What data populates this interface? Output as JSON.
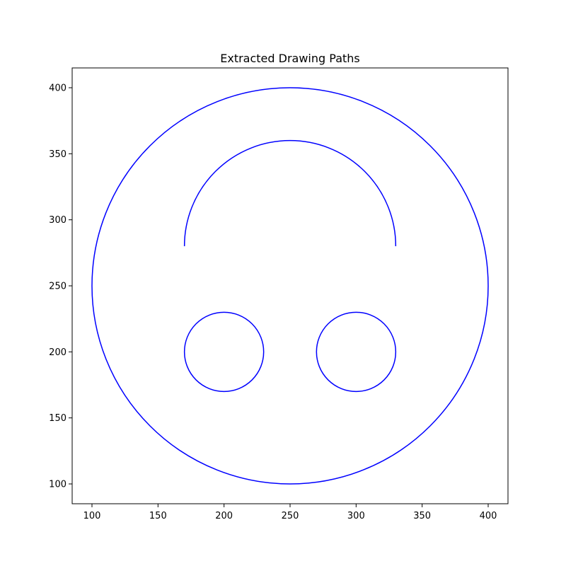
{
  "chart_data": {
    "type": "line",
    "title": "Extracted Drawing Paths",
    "xlabel": "",
    "ylabel": "",
    "xlim": [
      85,
      415
    ],
    "ylim": [
      85,
      415
    ],
    "x_ticks": [
      100,
      150,
      200,
      250,
      300,
      350,
      400
    ],
    "y_ticks": [
      100,
      150,
      200,
      250,
      300,
      350,
      400
    ],
    "grid": false,
    "legend": "none",
    "line_color": "#0000ff",
    "paths": [
      {
        "shape": "circle",
        "center": [
          250,
          250
        ],
        "radius": 150
      },
      {
        "shape": "arc",
        "center": [
          250,
          280
        ],
        "radius": 80,
        "start_deg": 0,
        "end_deg": 180
      },
      {
        "shape": "circle",
        "center": [
          200,
          200
        ],
        "radius": 30
      },
      {
        "shape": "circle",
        "center": [
          300,
          200
        ],
        "radius": 30
      }
    ]
  }
}
